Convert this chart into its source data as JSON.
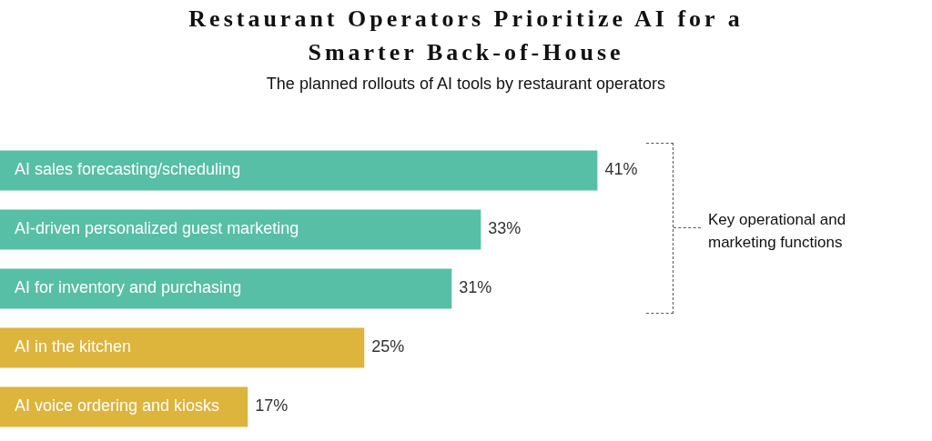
{
  "chart_data": {
    "type": "bar",
    "orientation": "horizontal",
    "title": "Restaurant Operators Prioritize AI for a Smarter Back-of-House",
    "subtitle": "The planned rollouts of AI tools by restaurant operators",
    "categories": [
      "AI sales forecasting/scheduling",
      "AI-driven personalized guest marketing",
      "AI for inventory and purchasing",
      "AI in the kitchen",
      "AI voice ordering and kiosks"
    ],
    "values": [
      41,
      33,
      31,
      25,
      17
    ],
    "colors": [
      "#57bfa5",
      "#57bfa5",
      "#57bfa5",
      "#ddb43c",
      "#ddb43c"
    ],
    "value_labels": [
      "41%",
      "33%",
      "31%",
      "25%",
      "17%"
    ],
    "annotations": [
      "Key operational and marketing functions"
    ]
  }
}
